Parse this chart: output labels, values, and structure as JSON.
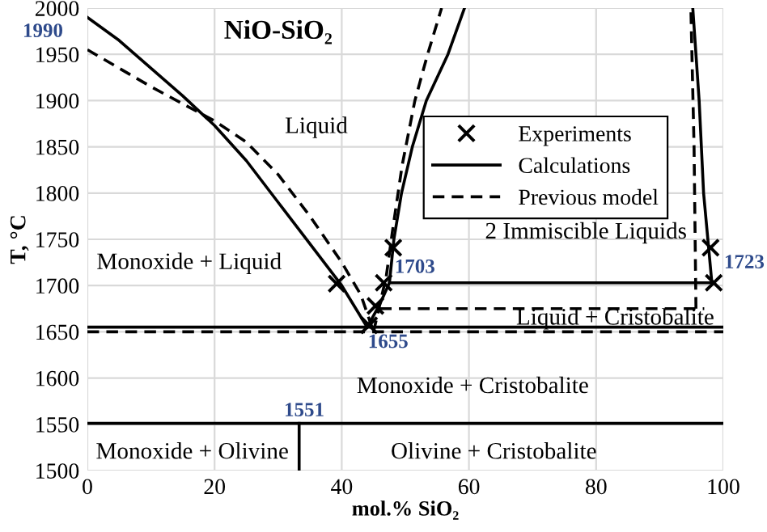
{
  "chart_data": {
    "type": "line",
    "title": "NiO-SiO₂",
    "xlabel": "mol.% SiO₂",
    "ylabel": "T, °C",
    "xlim": [
      0,
      100
    ],
    "ylim": [
      1500,
      2000
    ],
    "xticks": [
      0,
      20,
      40,
      60,
      80,
      100
    ],
    "yticks": [
      1500,
      1550,
      1600,
      1650,
      1700,
      1750,
      1800,
      1850,
      1900,
      1950,
      2000
    ],
    "grid": true,
    "legend": "top right",
    "series": [
      {
        "name": "Experiments",
        "type": "scatter",
        "marker": "cross",
        "color": "#000000",
        "x": [
          39.2,
          44.3,
          45.3,
          46.6,
          48.1,
          98.0,
          98.5
        ],
        "values": [
          1702,
          1657,
          1678,
          1703,
          1741,
          1741,
          1703
        ]
      },
      {
        "name": "Calculations",
        "line_style": "solid",
        "color": "#000000",
        "x": [
          0,
          5,
          10,
          15,
          20,
          25,
          30,
          35,
          40,
          44
        ],
        "values": [
          1990,
          1965,
          1935,
          1905,
          1873,
          1835,
          1790,
          1745,
          1700,
          1655
        ]
      },
      {
        "line_style": "solid",
        "color": "#000000",
        "x": [
          44,
          46,
          47.5,
          48.2,
          49.4,
          51.1,
          53.3,
          56.7,
          59.3
        ],
        "values": [
          1655,
          1680,
          1703,
          1750,
          1800,
          1850,
          1900,
          1950,
          2000
        ]
      },
      {
        "line_style": "solid",
        "color": "#000000",
        "x": [
          98.2,
          96.9,
          96.2,
          95.2
        ],
        "values": [
          1703,
          1800,
          1900,
          2000
        ]
      },
      {
        "line_style": "solid",
        "color": "#000000",
        "x": [
          47.5,
          98.2
        ],
        "values": [
          1703,
          1703
        ]
      },
      {
        "line_style": "solid",
        "color": "#000000",
        "x": [
          0,
          100
        ],
        "values": [
          1655,
          1655
        ]
      },
      {
        "line_style": "solid",
        "color": "#000000",
        "x": [
          0,
          100
        ],
        "values": [
          1551,
          1551
        ]
      },
      {
        "line_style": "solid",
        "color": "#000000",
        "x": [
          33.3,
          33.3
        ],
        "values": [
          1500,
          1551
        ]
      },
      {
        "name": "Previous model",
        "line_style": "dashed",
        "color": "#000000",
        "x": [
          0,
          10,
          20,
          25,
          30,
          35,
          40,
          43,
          45
        ],
        "values": [
          1955,
          1915,
          1878,
          1855,
          1820,
          1775,
          1725,
          1690,
          1650
        ]
      },
      {
        "line_style": "dashed",
        "color": "#000000",
        "x": [
          45,
          46,
          47,
          48,
          49.5,
          51.5,
          53.5,
          55.7
        ],
        "values": [
          1650,
          1680,
          1710,
          1760,
          1830,
          1900,
          1950,
          2000
        ]
      },
      {
        "line_style": "dashed",
        "color": "#000000",
        "x": [
          46,
          97
        ],
        "values": [
          1675,
          1675
        ]
      },
      {
        "line_style": "dashed",
        "color": "#000000",
        "x": [
          95.7,
          95.4,
          94.9
        ],
        "values": [
          1675,
          1850,
          2000
        ]
      },
      {
        "line_style": "dashed",
        "color": "#000000",
        "x": [
          0,
          100
        ],
        "values": [
          1650,
          1650
        ]
      }
    ],
    "annotations": [
      "Liquid",
      "2 Immiscible Liquids",
      "Monoxide + Liquid",
      "Liquid + Cristobalite",
      "Monoxide + Cristobalite",
      "Olivine + Cristobalite",
      "Monoxide + Olivine",
      "1990",
      "1703",
      "1655",
      "1551",
      "1723"
    ]
  }
}
